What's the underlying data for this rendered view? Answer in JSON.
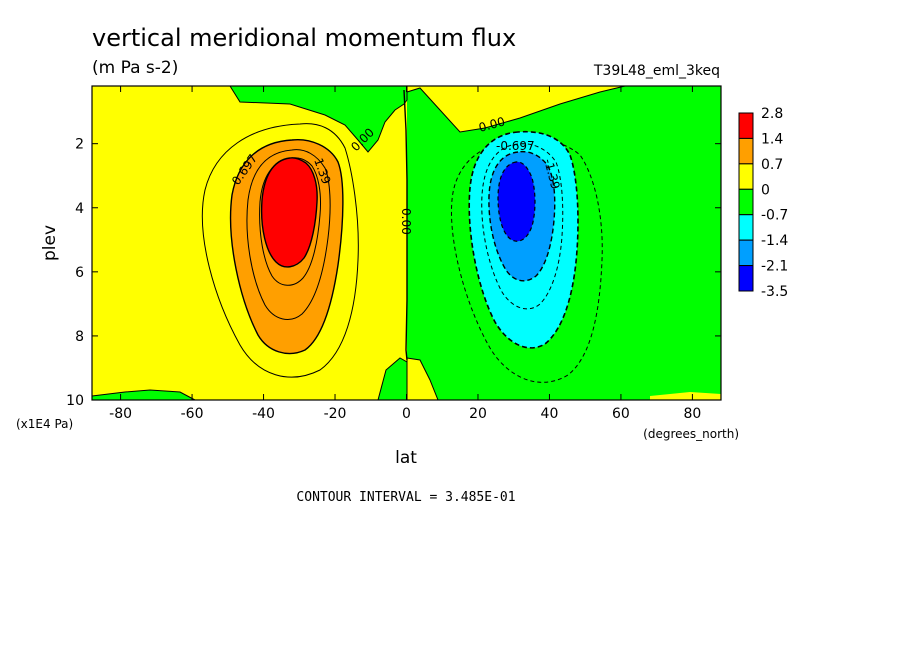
{
  "chart_data": {
    "type": "heatmap",
    "title": "vertical meridional momentum flux",
    "units": "(m Pa s-2)",
    "run_label": "T39L48_eml_3keq",
    "xlabel": "lat",
    "x_units": "(degrees_north)",
    "ylabel": "plev",
    "y_units": "(x1E4 Pa)",
    "xlim": [
      -88,
      88
    ],
    "ylim": [
      10,
      0.2
    ],
    "y_inverted": true,
    "x_ticks": [
      -80,
      -60,
      -40,
      -20,
      0,
      20,
      40,
      60,
      80
    ],
    "x_tick_labels": [
      "-80",
      "-60",
      "-40",
      "-20",
      "0",
      "20",
      "40",
      "60",
      "80"
    ],
    "y_ticks": [
      2,
      4,
      6,
      8,
      10
    ],
    "y_tick_labels": [
      "2",
      "4",
      "6",
      "8",
      "10"
    ],
    "contour_interval_text": "CONTOUR INTERVAL = 3.485E-01",
    "contour_labels": [
      "0.697",
      "1.39",
      "0.00",
      "0.00",
      "0.00",
      "-0.697",
      "-1.39"
    ],
    "colorbar": {
      "position": "right",
      "labels": [
        "2.8",
        "1.4",
        "0.7",
        "0",
        "-0.7",
        "-1.4",
        "-2.1",
        "-3.5"
      ],
      "colors": [
        "#ff0000",
        "#ff9f00",
        "#ffff00",
        "#00ff00",
        "#00ffff",
        "#009fff",
        "#0000ff"
      ]
    },
    "extrema": [
      {
        "sign": "positive",
        "lat": -32,
        "plev": 4,
        "max": 2.8
      },
      {
        "sign": "negative",
        "lat": 32,
        "plev": 4,
        "min": -3.5
      }
    ]
  }
}
